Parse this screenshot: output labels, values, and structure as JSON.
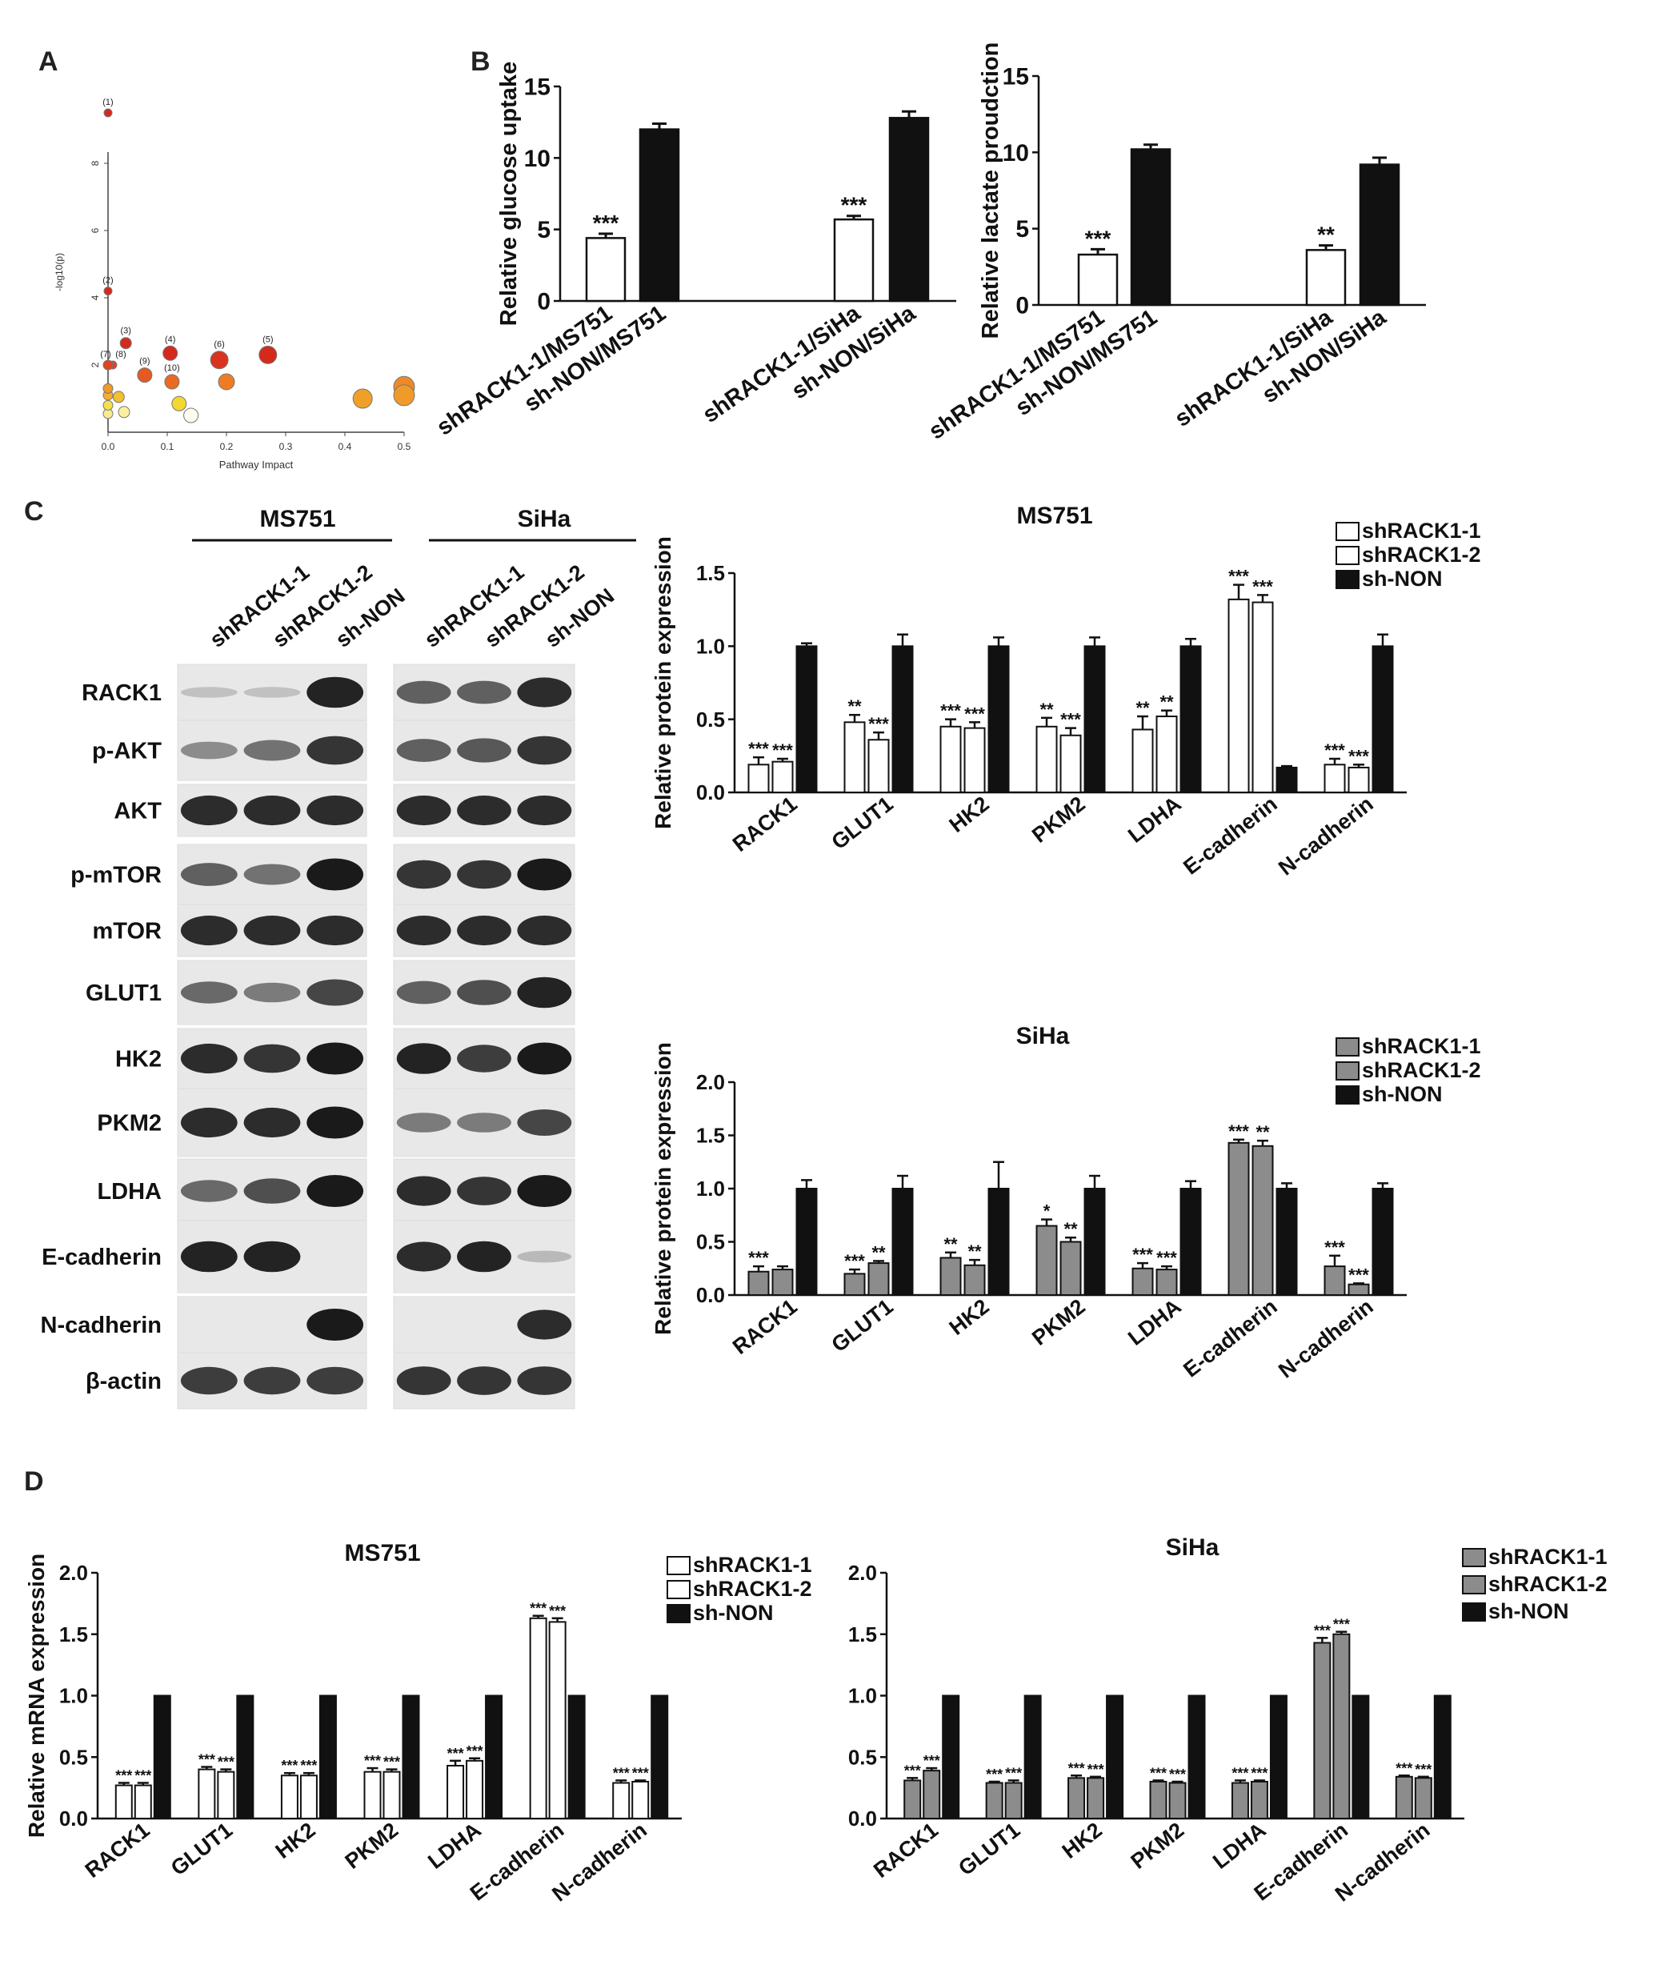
{
  "panels": {
    "A": "A",
    "B": "B",
    "C": "C",
    "D": "D"
  },
  "colors": {
    "black": "#111111",
    "white": "#ffffff",
    "gray": "#8c8c8c",
    "red": "#d42a1c",
    "orange": "#ec7a22",
    "yellow": "#f0d030"
  },
  "chart_data": [
    {
      "id": "A",
      "type": "scatter",
      "xlabel": "Pathway Impact",
      "ylabel": "-log10(p)",
      "xlim": [
        0,
        0.5
      ],
      "ylim": [
        0,
        10
      ],
      "xticks": [
        "0.0",
        "0.1",
        "0.2",
        "0.3",
        "0.4",
        "0.5"
      ],
      "yticks": [
        "2",
        "4",
        "6",
        "8"
      ],
      "points": [
        {
          "x": 0.0,
          "y": 9.5,
          "label": "(1)",
          "color": "#d42a1c",
          "r": 5
        },
        {
          "x": 0.0,
          "y": 4.2,
          "label": "(2)",
          "color": "#d42a1c",
          "r": 5
        },
        {
          "x": 0.03,
          "y": 2.65,
          "label": "(3)",
          "color": "#d42a1c",
          "r": 7
        },
        {
          "x": 0.105,
          "y": 2.35,
          "label": "(4)",
          "color": "#d42a1c",
          "r": 9
        },
        {
          "x": 0.27,
          "y": 2.3,
          "label": "(5)",
          "color": "#d42a1c",
          "r": 11
        },
        {
          "x": 0.188,
          "y": 2.15,
          "label": "(6)",
          "color": "#d93420",
          "r": 11
        },
        {
          "x": 0.0,
          "y": 2.0,
          "label": "(7)",
          "color": "#e04420",
          "r": 6
        },
        {
          "x": 0.008,
          "y": 2.0,
          "label": "(8)",
          "color": "#e04420",
          "r": 5
        },
        {
          "x": 0.062,
          "y": 1.7,
          "label": "(9)",
          "color": "#e45a22",
          "r": 9
        },
        {
          "x": 0.108,
          "y": 1.5,
          "label": "(10)",
          "color": "#ea6a22",
          "r": 9
        },
        {
          "x": 0.2,
          "y": 1.5,
          "label": "",
          "color": "#ee7c24",
          "r": 10
        },
        {
          "x": 0.0,
          "y": 1.3,
          "label": "",
          "color": "#f09a2a",
          "r": 6
        },
        {
          "x": 0.0,
          "y": 1.1,
          "label": "",
          "color": "#f2b030",
          "r": 6
        },
        {
          "x": 0.018,
          "y": 1.05,
          "label": "",
          "color": "#f2c030",
          "r": 7
        },
        {
          "x": 0.43,
          "y": 1.0,
          "label": "",
          "color": "#f0a028",
          "r": 12
        },
        {
          "x": 0.5,
          "y": 1.1,
          "label": "",
          "color": "#f09a2a",
          "r": 13
        },
        {
          "x": 0.5,
          "y": 1.35,
          "label": "",
          "color": "#ee8a26",
          "r": 13
        },
        {
          "x": 0.12,
          "y": 0.85,
          "label": "",
          "color": "#f2d830",
          "r": 9
        },
        {
          "x": 0.0,
          "y": 0.8,
          "label": "",
          "color": "#f4e04a",
          "r": 6
        },
        {
          "x": 0.0,
          "y": 0.55,
          "label": "",
          "color": "#f8ec90",
          "r": 6
        },
        {
          "x": 0.027,
          "y": 0.6,
          "label": "",
          "color": "#fbf0a0",
          "r": 7
        },
        {
          "x": 0.14,
          "y": 0.5,
          "label": "",
          "color": "#fffdf0",
          "r": 9
        }
      ]
    },
    {
      "id": "B1",
      "type": "bar",
      "ylabel": "Relative glucose uptake",
      "ylim": [
        0,
        15
      ],
      "yticks": [
        "0",
        "5",
        "10",
        "15"
      ],
      "categories": [
        "shRACK1-1/MS751",
        "sh-NON/MS751",
        "shRACK1-1/SiHa",
        "sh-NON/SiHa"
      ],
      "fills": [
        "white",
        "black",
        "white",
        "black"
      ],
      "values": [
        4.4,
        12.0,
        5.7,
        12.8
      ],
      "errors": [
        0.3,
        0.4,
        0.25,
        0.45
      ],
      "annotations": [
        "***",
        "",
        "***",
        ""
      ]
    },
    {
      "id": "B2",
      "type": "bar",
      "ylabel": "Relative lactate proudction",
      "ylim": [
        0,
        15
      ],
      "yticks": [
        "0",
        "5",
        "10",
        "15"
      ],
      "categories": [
        "shRACK1-1/MS751",
        "sh-NON/MS751",
        "shRACK1-1/SiHa",
        "sh-NON/SiHa"
      ],
      "fills": [
        "white",
        "black",
        "white",
        "black"
      ],
      "values": [
        3.3,
        10.2,
        3.6,
        9.2
      ],
      "errors": [
        0.35,
        0.3,
        0.3,
        0.45
      ],
      "annotations": [
        "***",
        "",
        "**",
        ""
      ]
    },
    {
      "id": "C1",
      "type": "bar",
      "title": "MS751",
      "ylabel": "Relative protein expression",
      "ylim": [
        0,
        1.5
      ],
      "yticks": [
        "0.0",
        "0.5",
        "1.0",
        "1.5"
      ],
      "categories": [
        "RACK1",
        "GLUT1",
        "HK2",
        "PKM2",
        "LDHA",
        "E-cadherin",
        "N-cadherin"
      ],
      "fills": [
        "white",
        "white",
        "black"
      ],
      "series": [
        {
          "name": "shRACK1-1",
          "values": [
            0.19,
            0.48,
            0.45,
            0.45,
            0.43,
            1.32,
            0.19
          ],
          "errors": [
            0.05,
            0.05,
            0.05,
            0.06,
            0.09,
            0.1,
            0.04
          ],
          "annotations": [
            "***",
            "**",
            "***",
            "**",
            "**",
            "***",
            "***"
          ]
        },
        {
          "name": "shRACK1-2",
          "values": [
            0.21,
            0.36,
            0.44,
            0.39,
            0.52,
            1.3,
            0.17
          ],
          "errors": [
            0.02,
            0.05,
            0.04,
            0.05,
            0.04,
            0.05,
            0.02
          ],
          "annotations": [
            "***",
            "***",
            "***",
            "***",
            "**",
            "***",
            "***"
          ]
        },
        {
          "name": "sh-NON",
          "values": [
            1.0,
            1.0,
            1.0,
            1.0,
            1.0,
            0.17,
            1.0
          ],
          "errors": [
            0.02,
            0.08,
            0.06,
            0.06,
            0.05,
            0.01,
            0.08
          ],
          "annotations": [
            "",
            "",
            "",
            "",
            "",
            "",
            ""
          ]
        }
      ]
    },
    {
      "id": "C2",
      "type": "bar",
      "title": "SiHa",
      "ylabel": "Relative protein expression",
      "ylim": [
        0,
        2.0
      ],
      "yticks": [
        "0.0",
        "0.5",
        "1.0",
        "1.5",
        "2.0"
      ],
      "categories": [
        "RACK1",
        "GLUT1",
        "HK2",
        "PKM2",
        "LDHA",
        "E-cadherin",
        "N-cadherin"
      ],
      "fills": [
        "gray",
        "gray",
        "black"
      ],
      "series": [
        {
          "name": "shRACK1-1",
          "values": [
            0.22,
            0.2,
            0.35,
            0.65,
            0.25,
            1.43,
            0.27
          ],
          "errors": [
            0.05,
            0.04,
            0.05,
            0.06,
            0.05,
            0.03,
            0.1
          ],
          "annotations": [
            "***",
            "***",
            "**",
            "*",
            "***",
            "***",
            "***"
          ]
        },
        {
          "name": "shRACK1-2",
          "values": [
            0.24,
            0.3,
            0.28,
            0.5,
            0.24,
            1.4,
            0.1
          ],
          "errors": [
            0.03,
            0.02,
            0.05,
            0.04,
            0.03,
            0.05,
            0.01
          ],
          "annotations": [
            "",
            "**",
            "**",
            "**",
            "***",
            "**",
            "***"
          ]
        },
        {
          "name": "sh-NON",
          "values": [
            1.0,
            1.0,
            1.0,
            1.0,
            1.0,
            1.0,
            1.0
          ],
          "errors": [
            0.08,
            0.12,
            0.25,
            0.12,
            0.07,
            0.05,
            0.05
          ],
          "annotations": [
            "",
            "",
            "",
            "",
            "",
            "",
            ""
          ]
        }
      ]
    },
    {
      "id": "D1",
      "type": "bar",
      "title": "MS751",
      "ylabel": "Relative mRNA expression",
      "ylim": [
        0,
        2.0
      ],
      "yticks": [
        "0.0",
        "0.5",
        "1.0",
        "1.5",
        "2.0"
      ],
      "categories": [
        "RACK1",
        "GLUT1",
        "HK2",
        "PKM2",
        "LDHA",
        "E-cadherin",
        "N-cadherin"
      ],
      "fills": [
        "white",
        "white",
        "black"
      ],
      "series": [
        {
          "name": "shRACK1-1",
          "values": [
            0.27,
            0.4,
            0.35,
            0.38,
            0.43,
            1.63,
            0.29
          ],
          "errors": [
            0.02,
            0.02,
            0.02,
            0.03,
            0.04,
            0.02,
            0.02
          ],
          "annotations": [
            "***",
            "***",
            "***",
            "***",
            "***",
            "***",
            "***"
          ]
        },
        {
          "name": "shRACK1-2",
          "values": [
            0.27,
            0.38,
            0.35,
            0.38,
            0.47,
            1.6,
            0.3
          ],
          "errors": [
            0.02,
            0.02,
            0.02,
            0.02,
            0.02,
            0.03,
            0.01
          ],
          "annotations": [
            "***",
            "***",
            "***",
            "***",
            "***",
            "***",
            "***"
          ]
        },
        {
          "name": "sh-NON",
          "values": [
            1.0,
            1.0,
            1.0,
            1.0,
            1.0,
            1.0,
            1.0
          ],
          "errors": [
            0,
            0,
            0,
            0,
            0,
            0,
            0
          ],
          "annotations": [
            "",
            "",
            "",
            "",
            "",
            "",
            ""
          ]
        }
      ]
    },
    {
      "id": "D2",
      "type": "bar",
      "title": "SiHa",
      "ylabel": "",
      "ylim": [
        0,
        2.0
      ],
      "yticks": [
        "0.0",
        "0.5",
        "1.0",
        "1.5",
        "2.0"
      ],
      "categories": [
        "RACK1",
        "GLUT1",
        "HK2",
        "PKM2",
        "LDHA",
        "E-cadherin",
        "N-cadherin"
      ],
      "fills": [
        "gray",
        "gray",
        "black"
      ],
      "series": [
        {
          "name": "shRACK1-1",
          "values": [
            0.31,
            0.29,
            0.33,
            0.3,
            0.29,
            1.43,
            0.34
          ],
          "errors": [
            0.02,
            0.01,
            0.02,
            0.01,
            0.02,
            0.04,
            0.01
          ],
          "annotations": [
            "***",
            "***",
            "***",
            "***",
            "***",
            "***",
            "***"
          ]
        },
        {
          "name": "shRACK1-2",
          "values": [
            0.39,
            0.29,
            0.33,
            0.29,
            0.3,
            1.5,
            0.33
          ],
          "errors": [
            0.02,
            0.02,
            0.01,
            0.01,
            0.01,
            0.02,
            0.01
          ],
          "annotations": [
            "***",
            "***",
            "***",
            "***",
            "***",
            "***",
            "***"
          ]
        },
        {
          "name": "sh-NON",
          "values": [
            1.0,
            1.0,
            1.0,
            1.0,
            1.0,
            1.0,
            1.0
          ],
          "errors": [
            0,
            0,
            0,
            0,
            0,
            0,
            0
          ],
          "annotations": [
            "",
            "",
            "",
            "",
            "",
            "",
            ""
          ]
        }
      ]
    }
  ],
  "blot": {
    "cell_lines": [
      "MS751",
      "SiHa"
    ],
    "lanes": [
      "shRACK1-1",
      "shRACK1-2",
      "sh-NON"
    ],
    "proteins": [
      "RACK1",
      "p-AKT",
      "AKT",
      "p-mTOR",
      "mTOR",
      "GLUT1",
      "HK2",
      "PKM2",
      "LDHA",
      "E-cadherin",
      "N-cadherin",
      "β-actin"
    ],
    "intensity_MS751": [
      [
        0.05,
        0.05,
        0.95
      ],
      [
        0.35,
        0.5,
        0.85
      ],
      [
        0.9,
        0.9,
        0.9
      ],
      [
        0.6,
        0.5,
        1.0
      ],
      [
        0.9,
        0.9,
        0.9
      ],
      [
        0.55,
        0.45,
        0.75
      ],
      [
        0.9,
        0.85,
        1.0
      ],
      [
        0.9,
        0.9,
        1.0
      ],
      [
        0.55,
        0.7,
        1.0
      ],
      [
        0.95,
        0.95,
        0.0
      ],
      [
        0.0,
        0.0,
        1.0
      ],
      [
        0.8,
        0.8,
        0.8
      ]
    ],
    "intensity_SiHa": [
      [
        0.6,
        0.6,
        0.9
      ],
      [
        0.6,
        0.65,
        0.85
      ],
      [
        0.9,
        0.9,
        0.9
      ],
      [
        0.85,
        0.85,
        1.0
      ],
      [
        0.9,
        0.9,
        0.9
      ],
      [
        0.6,
        0.7,
        0.95
      ],
      [
        0.95,
        0.8,
        1.0
      ],
      [
        0.45,
        0.45,
        0.75
      ],
      [
        0.9,
        0.85,
        1.0
      ],
      [
        0.9,
        0.95,
        0.1
      ],
      [
        0.0,
        0.0,
        0.9
      ],
      [
        0.85,
        0.85,
        0.85
      ]
    ]
  }
}
